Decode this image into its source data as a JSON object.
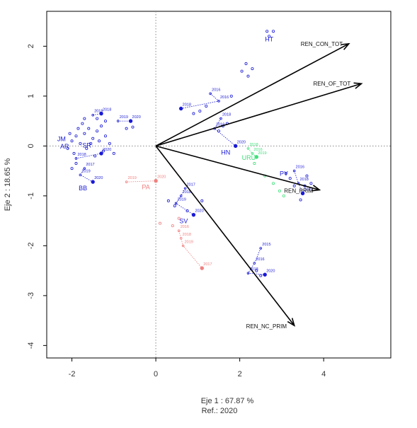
{
  "chart_data": {
    "type": "scatter",
    "title": "",
    "xlabel": "Eje 1 :  67.87 %",
    "xlabel_sub": "Ref.:  2020",
    "ylabel": "Eje 2 :  18.65 %",
    "xlim": [
      -2.6,
      5.6
    ],
    "ylim": [
      -4.25,
      2.7
    ],
    "x_ticks": [
      -2,
      0,
      2,
      4
    ],
    "y_ticks": [
      -4,
      -3,
      -2,
      -1,
      0,
      1,
      2
    ],
    "x_tick_labels": [
      "-2",
      "0",
      "2",
      "4"
    ],
    "y_tick_labels": [
      "-4",
      "-3",
      "-2",
      "-1",
      "0",
      "1",
      "2"
    ],
    "grid": false,
    "reference_lines": [
      {
        "axis": "x",
        "value": 0
      },
      {
        "axis": "y",
        "value": 0
      }
    ],
    "colors": {
      "blue": "#1a1ad6",
      "pink": "#f08080",
      "green": "#3fe07a",
      "arrow": "#000000",
      "box": "#000000"
    },
    "arrows": [
      {
        "label": "REN_CON_TOT",
        "x": 4.6,
        "y": 2.05
      },
      {
        "label": "REN_OF_TOT",
        "x": 4.9,
        "y": 1.25
      },
      {
        "label": "REN_PRIM",
        "x": 3.9,
        "y": -0.88
      },
      {
        "label": "REN_NC_PRIM",
        "x": 3.3,
        "y": -3.6
      }
    ],
    "labeled_trajectories": [
      {
        "name": "PA",
        "color": "pink",
        "points": [
          {
            "year": "2019",
            "x": -0.7,
            "y": -0.72
          },
          {
            "year": "2020",
            "x": 0.0,
            "y": -0.7
          }
        ]
      },
      {
        "name": "SV",
        "color": "blue",
        "points": [
          {
            "year": "2017",
            "x": 0.7,
            "y": -0.85
          },
          {
            "year": "2018",
            "x": 0.6,
            "y": -1.0
          },
          {
            "year": "2019",
            "x": 0.48,
            "y": -1.15
          },
          {
            "year": "2020",
            "x": 0.9,
            "y": -1.38
          }
        ]
      },
      {
        "name": "",
        "color": "pink",
        "points": [
          {
            "year": "2016",
            "x": 0.55,
            "y": -1.7
          },
          {
            "year": "2018",
            "x": 0.6,
            "y": -1.85
          },
          {
            "year": "2019",
            "x": 0.65,
            "y": -2.0
          },
          {
            "year": "2017",
            "x": 1.1,
            "y": -2.45
          }
        ]
      },
      {
        "name": "HN",
        "color": "blue",
        "points": [
          {
            "year": "2018",
            "x": 1.55,
            "y": 0.55
          },
          {
            "year": "2019",
            "x": 1.4,
            "y": 0.35
          },
          {
            "year": "2020",
            "x": 1.9,
            "y": 0.0
          }
        ]
      },
      {
        "name": "",
        "color": "blue",
        "points": [
          {
            "year": "2016",
            "x": 1.3,
            "y": 1.05
          },
          {
            "year": "2016",
            "x": 1.5,
            "y": 0.9
          },
          {
            "year": "2018",
            "x": 0.6,
            "y": 0.75
          }
        ]
      },
      {
        "name": "",
        "color": "blue",
        "points": [
          {
            "year": "2015",
            "x": 2.5,
            "y": -2.05
          },
          {
            "year": "2016",
            "x": 2.35,
            "y": -2.35
          },
          {
            "year": "2018",
            "x": 2.2,
            "y": -2.55
          },
          {
            "year": "2020",
            "x": 2.6,
            "y": -2.58
          }
        ]
      },
      {
        "name": "",
        "color": "green",
        "points": [
          {
            "year": "2018",
            "x": 2.2,
            "y": -0.05
          },
          {
            "year": "2016",
            "x": 2.3,
            "y": -0.15
          },
          {
            "year": "2019",
            "x": 2.4,
            "y": -0.22
          }
        ]
      },
      {
        "name": "",
        "color": "blue",
        "points": [
          {
            "year": "2016",
            "x": 3.3,
            "y": -0.5
          },
          {
            "year": "2018",
            "x": 3.4,
            "y": -0.75
          },
          {
            "year": "2020",
            "x": 3.5,
            "y": -0.95
          }
        ]
      },
      {
        "name": "BB",
        "color": "blue",
        "points": [
          {
            "year": "2017",
            "x": -1.7,
            "y": -0.45
          },
          {
            "year": "2019",
            "x": -1.8,
            "y": -0.58
          },
          {
            "year": "2020",
            "x": -1.5,
            "y": -0.72
          }
        ]
      },
      {
        "name": "",
        "color": "blue",
        "points": [
          {
            "year": "2018",
            "x": -1.9,
            "y": -0.25
          },
          {
            "year": "2020",
            "x": -1.3,
            "y": -0.15
          }
        ]
      },
      {
        "name": "",
        "color": "blue",
        "points": [
          {
            "year": "2019",
            "x": -0.9,
            "y": 0.5
          },
          {
            "year": "2020",
            "x": -0.6,
            "y": 0.5
          }
        ]
      },
      {
        "name": "",
        "color": "blue",
        "points": [
          {
            "year": "2018",
            "x": -1.5,
            "y": 0.62
          },
          {
            "year": "2018",
            "x": -1.3,
            "y": 0.65
          }
        ]
      }
    ],
    "text_labels": [
      {
        "text": "HT",
        "x": 2.6,
        "y": 2.1,
        "color": "blue"
      },
      {
        "text": "JM",
        "x": -2.35,
        "y": 0.1,
        "color": "blue"
      },
      {
        "text": "AR",
        "x": -2.28,
        "y": -0.05,
        "color": "blue"
      },
      {
        "text": "SR",
        "x": -1.75,
        "y": -0.03,
        "color": "blue"
      },
      {
        "text": "PY",
        "x": 2.95,
        "y": -0.6,
        "color": "blue"
      },
      {
        "text": "URU",
        "x": 2.05,
        "y": -0.28,
        "color": "green"
      }
    ],
    "blue_points": [
      [
        -2.0,
        0.1
      ],
      [
        -1.9,
        0.2
      ],
      [
        -1.8,
        0.05
      ],
      [
        -1.7,
        0.25
      ],
      [
        -1.6,
        0.35
      ],
      [
        -1.5,
        0.15
      ],
      [
        -1.4,
        0.3
      ],
      [
        -2.1,
        -0.05
      ],
      [
        -1.95,
        -0.15
      ],
      [
        -1.65,
        -0.05
      ],
      [
        -1.55,
        0.05
      ],
      [
        -1.45,
        -0.2
      ],
      [
        -1.35,
        0.1
      ],
      [
        -1.25,
        -0.1
      ],
      [
        -2.05,
        0.25
      ],
      [
        -1.85,
        0.35
      ],
      [
        -1.75,
        0.45
      ],
      [
        -1.3,
        0.4
      ],
      [
        -1.2,
        0.2
      ],
      [
        -1.1,
        0.05
      ],
      [
        -1.0,
        -0.15
      ],
      [
        -1.9,
        -0.35
      ],
      [
        -2.0,
        -0.45
      ],
      [
        -1.7,
        0.55
      ],
      [
        -1.4,
        0.55
      ],
      [
        -1.2,
        0.5
      ],
      [
        -0.55,
        0.38
      ],
      [
        -0.7,
        0.35
      ],
      [
        0.9,
        0.65
      ],
      [
        1.2,
        0.8
      ],
      [
        1.05,
        0.7
      ],
      [
        1.7,
        0.45
      ],
      [
        1.5,
        0.3
      ],
      [
        1.6,
        0.4
      ],
      [
        1.8,
        1.0
      ],
      [
        2.15,
        1.65
      ],
      [
        2.3,
        1.55
      ],
      [
        2.05,
        1.5
      ],
      [
        2.2,
        1.4
      ],
      [
        2.65,
        2.3
      ],
      [
        2.8,
        2.3
      ],
      [
        2.7,
        2.2
      ],
      [
        3.1,
        -0.55
      ],
      [
        3.2,
        -0.65
      ],
      [
        3.6,
        -0.6
      ],
      [
        3.55,
        -0.8
      ],
      [
        3.3,
        -0.8
      ],
      [
        3.7,
        -0.75
      ],
      [
        3.45,
        -1.08
      ],
      [
        2.4,
        -2.5
      ],
      [
        2.5,
        -2.6
      ],
      [
        0.3,
        -1.1
      ],
      [
        0.45,
        -1.2
      ],
      [
        0.75,
        -1.3
      ],
      [
        1.1,
        -1.1
      ]
    ],
    "pink_points": [
      [
        0.1,
        -1.55
      ],
      [
        0.4,
        -1.6
      ],
      [
        0.55,
        -1.45
      ]
    ],
    "green_points": [
      [
        2.6,
        -0.6
      ],
      [
        2.8,
        -0.75
      ],
      [
        2.95,
        -0.9
      ],
      [
        3.05,
        -1.0
      ],
      [
        2.35,
        -0.35
      ]
    ]
  }
}
